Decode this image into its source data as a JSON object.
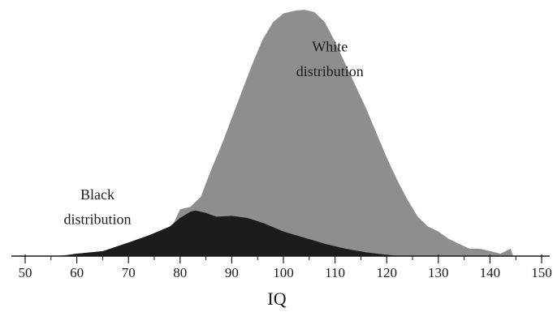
{
  "chart_data": {
    "type": "area",
    "xlabel": "IQ",
    "xlim": [
      50,
      150
    ],
    "xticks": [
      "50",
      "60",
      "70",
      "80",
      "90",
      "100",
      "110",
      "120",
      "130",
      "140",
      "150"
    ],
    "ylim": [
      0,
      1
    ],
    "series": [
      {
        "name": "White distribution",
        "color": "#8e8e8e",
        "points": [
          [
            56,
            0.0
          ],
          [
            60,
            0.01
          ],
          [
            65,
            0.018
          ],
          [
            70,
            0.04
          ],
          [
            75,
            0.07
          ],
          [
            78,
            0.1
          ],
          [
            80,
            0.19
          ],
          [
            82,
            0.2
          ],
          [
            84,
            0.24
          ],
          [
            86,
            0.35
          ],
          [
            88,
            0.45
          ],
          [
            90,
            0.56
          ],
          [
            92,
            0.67
          ],
          [
            94,
            0.78
          ],
          [
            96,
            0.88
          ],
          [
            98,
            0.95
          ],
          [
            100,
            0.985
          ],
          [
            102,
            0.995
          ],
          [
            104,
            1.0
          ],
          [
            106,
            0.99
          ],
          [
            108,
            0.95
          ],
          [
            110,
            0.87
          ],
          [
            112,
            0.78
          ],
          [
            114,
            0.69
          ],
          [
            116,
            0.6
          ],
          [
            118,
            0.5
          ],
          [
            120,
            0.4
          ],
          [
            122,
            0.31
          ],
          [
            124,
            0.23
          ],
          [
            126,
            0.16
          ],
          [
            128,
            0.12
          ],
          [
            130,
            0.1
          ],
          [
            132,
            0.07
          ],
          [
            134,
            0.05
          ],
          [
            136,
            0.03
          ],
          [
            138,
            0.03
          ],
          [
            140,
            0.02
          ],
          [
            142,
            0.01
          ],
          [
            144,
            0.03
          ],
          [
            144.5,
            0.0
          ]
        ]
      },
      {
        "name": "Black distribution",
        "color": "#1c1c1c",
        "points": [
          [
            57,
            0.0
          ],
          [
            60,
            0.01
          ],
          [
            65,
            0.02
          ],
          [
            70,
            0.055
          ],
          [
            74,
            0.085
          ],
          [
            78,
            0.12
          ],
          [
            80,
            0.155
          ],
          [
            82,
            0.18
          ],
          [
            83,
            0.185
          ],
          [
            85,
            0.175
          ],
          [
            87,
            0.16
          ],
          [
            90,
            0.163
          ],
          [
            93,
            0.155
          ],
          [
            96,
            0.135
          ],
          [
            100,
            0.1
          ],
          [
            104,
            0.075
          ],
          [
            108,
            0.05
          ],
          [
            112,
            0.03
          ],
          [
            116,
            0.015
          ],
          [
            120,
            0.005
          ],
          [
            123,
            0.0
          ]
        ]
      }
    ],
    "annotations": [
      {
        "text": "White",
        "x": 109,
        "y": 0.83
      },
      {
        "text": "distribution",
        "x": 109,
        "y": 0.73
      },
      {
        "text": "Black",
        "x": 64,
        "y": 0.23
      },
      {
        "text": "distribution",
        "x": 64,
        "y": 0.13
      }
    ]
  }
}
